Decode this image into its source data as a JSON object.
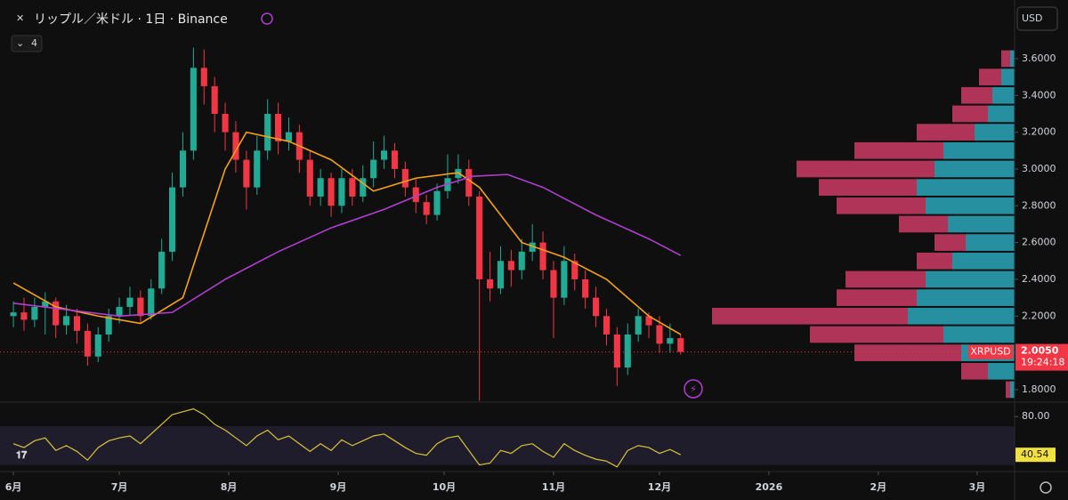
{
  "chart_data": {
    "type": "candlestick",
    "title": "リップル／米ドル · 1日 · Binance",
    "indicator_count": 4,
    "currency": "USD",
    "symbol": "XRPUSD",
    "last_price": {
      "value": 2.005,
      "label": "2.0050"
    },
    "countdown": "19:24:18",
    "up_color": "#22ab94",
    "down_color": "#f23645",
    "xlim": [
      -3.8,
      283.6
    ],
    "xticks": [
      {
        "value": 0,
        "label": "6月"
      },
      {
        "value": 30,
        "label": "7月"
      },
      {
        "value": 61,
        "label": "8月"
      },
      {
        "value": 92,
        "label": "9月"
      },
      {
        "value": 122,
        "label": "10月"
      },
      {
        "value": 153,
        "label": "11月"
      },
      {
        "value": 183,
        "label": "12月"
      },
      {
        "value": 214,
        "label": "2026"
      },
      {
        "value": 245,
        "label": "2月"
      },
      {
        "value": 273,
        "label": "3月"
      }
    ],
    "ylim": [
      1.732,
      3.919
    ],
    "yticks": [
      {
        "value": 1.8,
        "label": "1.8000"
      },
      {
        "value": 2.0,
        "label": "2.0000"
      },
      {
        "value": 2.2,
        "label": "2.2000"
      },
      {
        "value": 2.4,
        "label": "2.4000"
      },
      {
        "value": 2.6,
        "label": "2.6000"
      },
      {
        "value": 2.8,
        "label": "2.8000"
      },
      {
        "value": 3.0,
        "label": "3.0000"
      },
      {
        "value": 3.2,
        "label": "3.2000"
      },
      {
        "value": 3.4,
        "label": "3.4000"
      },
      {
        "value": 3.6,
        "label": "3.6000"
      }
    ],
    "x": [
      0,
      3,
      6,
      9,
      12,
      15,
      18,
      21,
      24,
      27,
      30,
      33,
      36,
      39,
      42,
      45,
      48,
      51,
      54,
      57,
      60,
      63,
      66,
      69,
      72,
      75,
      78,
      81,
      84,
      87,
      90,
      93,
      96,
      99,
      102,
      105,
      108,
      111,
      114,
      117,
      120,
      123,
      126,
      129,
      132,
      135,
      138,
      141,
      144,
      147,
      150,
      153,
      156,
      159,
      162,
      165,
      168,
      171,
      174,
      177,
      180,
      183,
      186,
      189
    ],
    "open": [
      2.2,
      2.22,
      2.18,
      2.25,
      2.28,
      2.15,
      2.2,
      2.12,
      1.98,
      2.1,
      2.2,
      2.25,
      2.3,
      2.2,
      2.35,
      2.55,
      2.9,
      3.1,
      3.55,
      3.45,
      3.3,
      3.2,
      3.05,
      2.9,
      3.1,
      3.3,
      3.15,
      3.2,
      3.05,
      2.85,
      2.95,
      2.8,
      2.95,
      2.85,
      2.95,
      3.05,
      3.1,
      3.0,
      2.9,
      2.82,
      2.75,
      2.88,
      2.95,
      3.0,
      2.85,
      2.4,
      2.35,
      2.5,
      2.45,
      2.55,
      2.6,
      2.45,
      2.3,
      2.5,
      2.4,
      2.3,
      2.2,
      2.1,
      1.92,
      2.1,
      2.2,
      2.15,
      2.05,
      2.08
    ],
    "high": [
      2.28,
      2.3,
      2.3,
      2.33,
      2.3,
      2.26,
      2.24,
      2.16,
      2.14,
      2.24,
      2.3,
      2.36,
      2.34,
      2.4,
      2.62,
      2.98,
      3.2,
      3.66,
      3.65,
      3.5,
      3.36,
      3.26,
      3.1,
      3.18,
      3.38,
      3.36,
      3.28,
      3.24,
      3.1,
      3.0,
      2.98,
      3.0,
      3.0,
      3.02,
      3.15,
      3.18,
      3.14,
      3.04,
      2.95,
      2.86,
      2.92,
      3.08,
      3.08,
      3.05,
      2.88,
      2.55,
      2.58,
      2.56,
      2.62,
      2.7,
      2.66,
      2.5,
      2.58,
      2.54,
      2.45,
      2.36,
      2.24,
      2.14,
      2.16,
      2.24,
      2.22,
      2.2,
      2.16,
      2.1
    ],
    "low": [
      2.14,
      2.12,
      2.14,
      2.1,
      2.08,
      2.1,
      2.05,
      1.93,
      1.95,
      2.06,
      2.16,
      2.2,
      2.16,
      2.18,
      2.32,
      2.5,
      2.85,
      3.05,
      3.35,
      3.2,
      3.1,
      2.98,
      2.78,
      2.86,
      3.05,
      3.08,
      3.1,
      2.98,
      2.8,
      2.8,
      2.74,
      2.76,
      2.8,
      2.82,
      2.9,
      3.0,
      2.95,
      2.85,
      2.76,
      2.7,
      2.72,
      2.84,
      2.92,
      2.8,
      1.74,
      2.28,
      2.32,
      2.36,
      2.4,
      2.5,
      2.4,
      2.08,
      2.26,
      2.34,
      2.24,
      2.14,
      2.04,
      1.82,
      1.88,
      2.06,
      2.08,
      2.0,
      2.0,
      1.99
    ],
    "close": [
      2.22,
      2.18,
      2.25,
      2.28,
      2.15,
      2.2,
      2.12,
      1.98,
      2.1,
      2.2,
      2.25,
      2.3,
      2.2,
      2.35,
      2.55,
      2.9,
      3.1,
      3.55,
      3.45,
      3.3,
      3.2,
      3.05,
      2.9,
      3.1,
      3.3,
      3.15,
      3.2,
      3.05,
      2.85,
      2.95,
      2.8,
      2.95,
      2.85,
      2.95,
      3.05,
      3.1,
      3.0,
      2.9,
      2.82,
      2.75,
      2.88,
      2.95,
      3.0,
      2.85,
      2.4,
      2.35,
      2.5,
      2.45,
      2.55,
      2.6,
      2.45,
      2.3,
      2.5,
      2.4,
      2.3,
      2.2,
      2.1,
      1.92,
      2.1,
      2.2,
      2.15,
      2.05,
      2.08,
      2.005
    ],
    "moving_averages": [
      {
        "color": "#f7a21b",
        "x": [
          0,
          12,
          24,
          36,
          48,
          60,
          66,
          78,
          90,
          102,
          114,
          126,
          132,
          144,
          156,
          168,
          180,
          189
        ],
        "values": [
          2.38,
          2.25,
          2.2,
          2.16,
          2.3,
          3.0,
          3.2,
          3.15,
          3.05,
          2.88,
          2.95,
          2.98,
          2.9,
          2.6,
          2.52,
          2.4,
          2.2,
          2.1
        ]
      },
      {
        "color": "#b03fd0",
        "x": [
          0,
          30,
          45,
          60,
          75,
          90,
          105,
          120,
          130,
          140,
          150,
          165,
          180,
          189
        ],
        "values": [
          2.27,
          2.2,
          2.22,
          2.4,
          2.55,
          2.68,
          2.78,
          2.9,
          2.96,
          2.97,
          2.9,
          2.75,
          2.62,
          2.53
        ]
      }
    ],
    "volume_profile": {
      "levels": [
        1.8,
        1.9,
        2.0,
        2.1,
        2.2,
        2.3,
        2.4,
        2.5,
        2.6,
        2.7,
        2.8,
        2.9,
        3.0,
        3.1,
        3.2,
        3.3,
        3.4,
        3.5,
        3.6
      ],
      "series": [
        {
          "color": "#2a9fb0",
          "values": [
            5,
            30,
            60,
            80,
            120,
            110,
            100,
            70,
            55,
            75,
            100,
            110,
            90,
            80,
            45,
            30,
            25,
            15,
            5
          ]
        },
        {
          "color": "#c2385f",
          "values": [
            5,
            30,
            120,
            150,
            220,
            90,
            90,
            40,
            35,
            55,
            100,
            110,
            155,
            100,
            65,
            40,
            35,
            25,
            10
          ]
        }
      ]
    },
    "rsi": {
      "color": "#d9c33a",
      "values": [
        52,
        48,
        55,
        58,
        45,
        50,
        44,
        35,
        48,
        55,
        58,
        60,
        52,
        62,
        72,
        82,
        85,
        88,
        82,
        72,
        66,
        58,
        50,
        60,
        66,
        56,
        60,
        52,
        44,
        52,
        45,
        56,
        50,
        55,
        60,
        62,
        55,
        48,
        42,
        40,
        52,
        58,
        60,
        45,
        30,
        32,
        45,
        42,
        50,
        52,
        44,
        38,
        52,
        45,
        40,
        36,
        34,
        28,
        45,
        50,
        48,
        42,
        46,
        40.54
      ],
      "ylim": [
        26,
        94
      ],
      "yticks": [
        {
          "value": 80,
          "label": "80.00"
        }
      ],
      "band": [
        30,
        70
      ]
    }
  }
}
